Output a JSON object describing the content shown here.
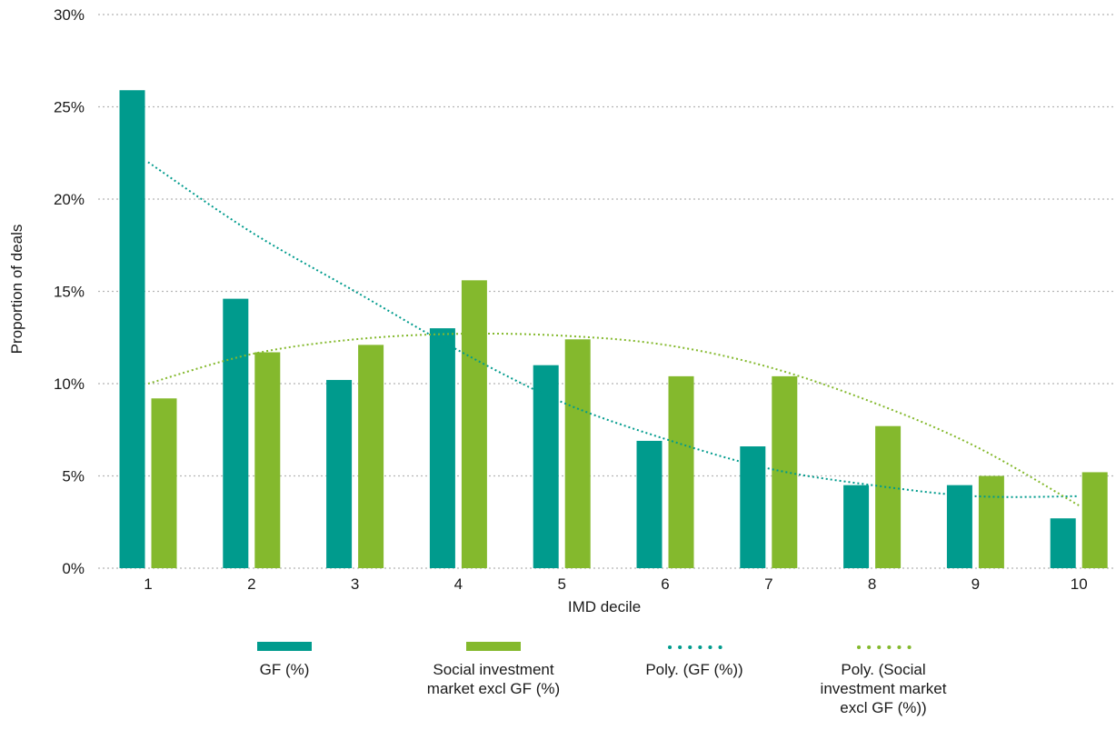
{
  "chart_data": {
    "type": "bar",
    "xlabel": "IMD decile",
    "ylabel": "Proportion of deals",
    "categories": [
      "1",
      "2",
      "3",
      "4",
      "5",
      "6",
      "7",
      "8",
      "9",
      "10"
    ],
    "ylim": [
      0,
      30
    ],
    "yticks": [
      "0%",
      "5%",
      "10%",
      "15%",
      "20%",
      "25%",
      "30%"
    ],
    "grid": true,
    "legend_position": "bottom",
    "series": [
      {
        "name": "GF (%)",
        "kind": "bar",
        "color": "#009B8D",
        "values": [
          25.9,
          14.6,
          10.2,
          13.0,
          11.0,
          6.9,
          6.6,
          4.5,
          4.5,
          2.7
        ]
      },
      {
        "name": "Social investment market excl GF (%)",
        "kind": "bar",
        "color": "#84B92D",
        "values": [
          9.2,
          11.7,
          12.1,
          15.6,
          12.4,
          10.4,
          10.4,
          7.7,
          5.0,
          5.2
        ]
      },
      {
        "name": "Poly. (GF (%))",
        "kind": "trendline",
        "color": "#009B8D",
        "values": [
          22.0,
          18.2,
          15.0,
          11.8,
          9.0,
          7.0,
          5.4,
          4.5,
          3.9,
          3.9
        ]
      },
      {
        "name": "Poly. (Social investment market excl GF (%))",
        "kind": "trendline",
        "color": "#84B92D",
        "values": [
          10.0,
          11.6,
          12.4,
          12.7,
          12.6,
          12.1,
          10.9,
          9.0,
          6.6,
          3.4
        ]
      }
    ],
    "legend": [
      {
        "lines": [
          "GF (%)"
        ],
        "symbol": "bar",
        "color": "#009B8D"
      },
      {
        "lines": [
          "Social investment",
          "market excl GF (%)"
        ],
        "symbol": "bar",
        "color": "#84B92D"
      },
      {
        "lines": [
          "Poly. (GF (%))"
        ],
        "symbol": "dots",
        "color": "#009B8D"
      },
      {
        "lines": [
          "Poly. (Social",
          "investment market",
          "excl GF (%))"
        ],
        "symbol": "dots",
        "color": "#84B92D"
      }
    ],
    "grid_color": "#b5b5b5"
  }
}
